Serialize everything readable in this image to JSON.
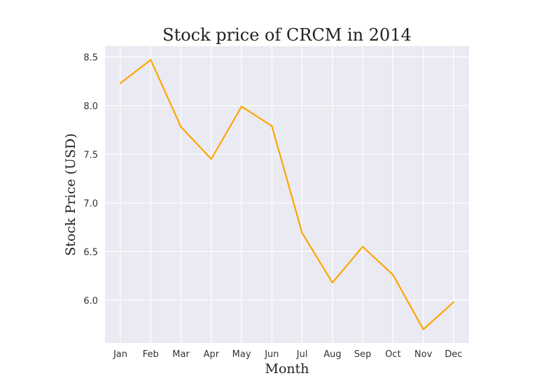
{
  "chart_data": {
    "type": "line",
    "title": "Stock price of CRCM in 2014",
    "xlabel": "Month",
    "ylabel": "Stock Price (USD)",
    "categories": [
      "Jan",
      "Feb",
      "Mar",
      "Apr",
      "May",
      "Jun",
      "Jul",
      "Aug",
      "Sep",
      "Oct",
      "Nov",
      "Dec"
    ],
    "series": [
      {
        "values": [
          8.23,
          8.47,
          7.78,
          7.45,
          7.99,
          7.79,
          6.69,
          6.18,
          6.55,
          6.26,
          5.7,
          5.98
        ],
        "color": "#ffa500"
      }
    ],
    "ylim": [
      5.56,
      8.61
    ],
    "yticks": [
      6.0,
      6.5,
      7.0,
      7.5,
      8.0,
      8.5
    ],
    "ytick_labels": [
      "6.0",
      "6.5",
      "7.0",
      "7.5",
      "8.0",
      "8.5"
    ],
    "grid": true,
    "plot_background": "#eaeaf2"
  }
}
